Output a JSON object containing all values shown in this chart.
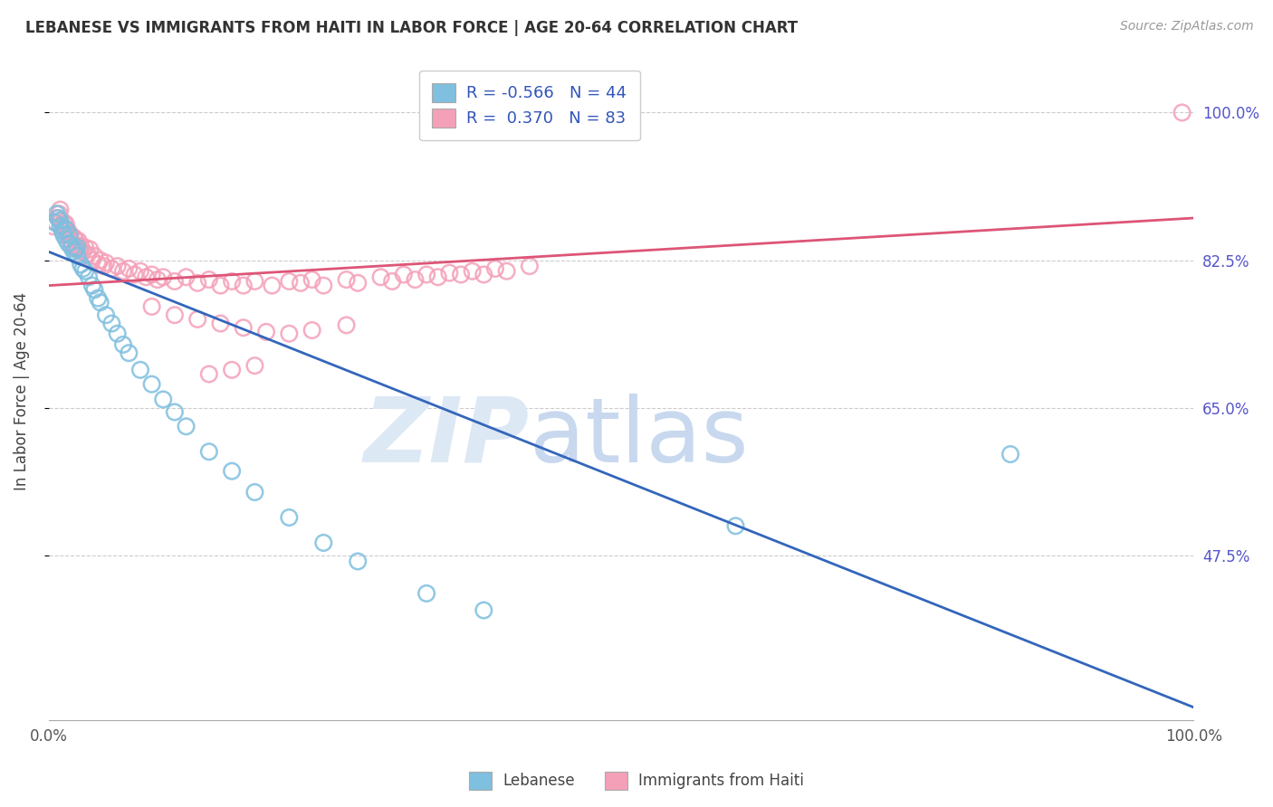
{
  "title": "LEBANESE VS IMMIGRANTS FROM HAITI IN LABOR FORCE | AGE 20-64 CORRELATION CHART",
  "source": "Source: ZipAtlas.com",
  "ylabel": "In Labor Force | Age 20-64",
  "y_ticks_labels": [
    "100.0%",
    "82.5%",
    "65.0%",
    "47.5%"
  ],
  "y_tick_vals": [
    1.0,
    0.825,
    0.65,
    0.475
  ],
  "x_range": [
    0.0,
    1.0
  ],
  "y_range": [
    0.28,
    1.06
  ],
  "legend_label1": "Lebanese",
  "legend_label2": "Immigrants from Haiti",
  "R1": "-0.566",
  "N1": "44",
  "R2": "0.370",
  "N2": "83",
  "blue_color": "#7fbfdf",
  "pink_color": "#f4a0b8",
  "blue_line_color": "#3366bb",
  "pink_line_color": "#dd5577",
  "blue_line_x": [
    0.0,
    1.0
  ],
  "blue_line_y": [
    0.835,
    0.295
  ],
  "pink_line_x": [
    0.0,
    1.0
  ],
  "pink_line_y": [
    0.795,
    0.875
  ],
  "blue_x": [
    0.005,
    0.007,
    0.008,
    0.01,
    0.01,
    0.012,
    0.013,
    0.015,
    0.015,
    0.017,
    0.018,
    0.02,
    0.022,
    0.023,
    0.025,
    0.025,
    0.028,
    0.03,
    0.032,
    0.035,
    0.038,
    0.04,
    0.043,
    0.045,
    0.05,
    0.055,
    0.06,
    0.065,
    0.07,
    0.08,
    0.09,
    0.1,
    0.11,
    0.12,
    0.14,
    0.16,
    0.18,
    0.21,
    0.24,
    0.27,
    0.33,
    0.38,
    0.6,
    0.84
  ],
  "blue_y": [
    0.87,
    0.88,
    0.875,
    0.872,
    0.865,
    0.86,
    0.855,
    0.862,
    0.85,
    0.845,
    0.855,
    0.84,
    0.835,
    0.838,
    0.83,
    0.84,
    0.82,
    0.815,
    0.812,
    0.805,
    0.795,
    0.79,
    0.78,
    0.775,
    0.76,
    0.75,
    0.738,
    0.725,
    0.715,
    0.695,
    0.678,
    0.66,
    0.645,
    0.628,
    0.598,
    0.575,
    0.55,
    0.52,
    0.49,
    0.468,
    0.43,
    0.41,
    0.51,
    0.595
  ],
  "pink_x": [
    0.004,
    0.006,
    0.008,
    0.009,
    0.01,
    0.01,
    0.012,
    0.013,
    0.014,
    0.015,
    0.016,
    0.017,
    0.018,
    0.019,
    0.02,
    0.022,
    0.023,
    0.024,
    0.025,
    0.026,
    0.027,
    0.028,
    0.03,
    0.032,
    0.034,
    0.036,
    0.038,
    0.04,
    0.043,
    0.045,
    0.048,
    0.05,
    0.055,
    0.06,
    0.065,
    0.07,
    0.075,
    0.08,
    0.085,
    0.09,
    0.095,
    0.1,
    0.11,
    0.12,
    0.13,
    0.14,
    0.15,
    0.16,
    0.17,
    0.18,
    0.195,
    0.21,
    0.22,
    0.23,
    0.24,
    0.26,
    0.27,
    0.29,
    0.3,
    0.31,
    0.32,
    0.33,
    0.34,
    0.35,
    0.36,
    0.37,
    0.38,
    0.39,
    0.4,
    0.42,
    0.09,
    0.11,
    0.13,
    0.15,
    0.17,
    0.19,
    0.21,
    0.23,
    0.26,
    0.14,
    0.16,
    0.18,
    0.99
  ],
  "pink_y": [
    0.865,
    0.87,
    0.875,
    0.88,
    0.885,
    0.872,
    0.865,
    0.87,
    0.862,
    0.868,
    0.855,
    0.86,
    0.85,
    0.855,
    0.845,
    0.852,
    0.84,
    0.848,
    0.842,
    0.848,
    0.836,
    0.842,
    0.835,
    0.84,
    0.832,
    0.838,
    0.825,
    0.83,
    0.82,
    0.825,
    0.818,
    0.822,
    0.815,
    0.818,
    0.812,
    0.815,
    0.808,
    0.812,
    0.805,
    0.808,
    0.802,
    0.805,
    0.8,
    0.805,
    0.798,
    0.802,
    0.795,
    0.8,
    0.795,
    0.8,
    0.795,
    0.8,
    0.798,
    0.802,
    0.795,
    0.802,
    0.798,
    0.805,
    0.8,
    0.808,
    0.802,
    0.808,
    0.805,
    0.81,
    0.808,
    0.812,
    0.808,
    0.815,
    0.812,
    0.818,
    0.77,
    0.76,
    0.755,
    0.75,
    0.745,
    0.74,
    0.738,
    0.742,
    0.748,
    0.69,
    0.695,
    0.7,
    1.0
  ]
}
